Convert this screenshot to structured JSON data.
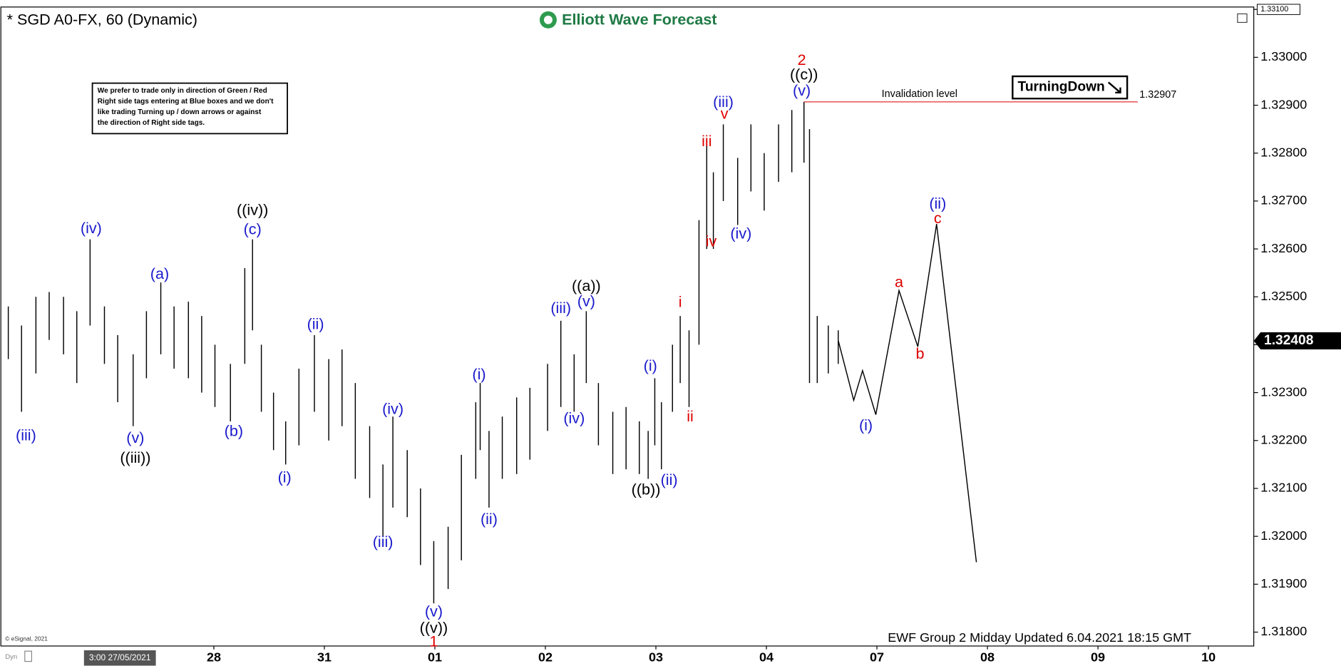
{
  "chart_data": {
    "type": "ohlc",
    "title": "* SGD A0-FX, 60 (Dynamic)",
    "brand": "Elliott Wave Forecast",
    "note": [
      "We prefer to trade only in direction of Green / Red",
      "Right side tags entering at Blue boxes and we don't",
      "like trading Turning up / down arrows or against",
      "the direction of Right side tags."
    ],
    "signal": "TurningDown",
    "footer": "EWF Group 2 Midday Updated 6.04.2021 18:15 GMT",
    "copyright": "© eSignal, 2021",
    "corner": "Dyn",
    "xlim": [
      -0.935,
      10.41
    ],
    "xticks": [
      {
        "value": 0.15,
        "label": "3:00 27/05/2021"
      },
      {
        "value": 1,
        "label": "28"
      },
      {
        "value": 2,
        "label": "31"
      },
      {
        "value": 3,
        "label": "01"
      },
      {
        "value": 4,
        "label": "02"
      },
      {
        "value": 5,
        "label": "03"
      },
      {
        "value": 6,
        "label": "04"
      },
      {
        "value": 7,
        "label": "07"
      },
      {
        "value": 8,
        "label": "08"
      },
      {
        "value": 9,
        "label": "09"
      },
      {
        "value": 10,
        "label": "10"
      }
    ],
    "ylim": [
      1.31771,
      1.33105
    ],
    "yticks": [
      {
        "value": 1.318,
        "label": "1.31800"
      },
      {
        "value": 1.319,
        "label": "1.31900"
      },
      {
        "value": 1.32,
        "label": "1.32000"
      },
      {
        "value": 1.321,
        "label": "1.32100"
      },
      {
        "value": 1.322,
        "label": "1.32200"
      },
      {
        "value": 1.323,
        "label": "1.32300"
      },
      {
        "value": 1.324,
        "label": "1.32400"
      },
      {
        "value": 1.325,
        "label": "1.32500"
      },
      {
        "value": 1.326,
        "label": "1.32600"
      },
      {
        "value": 1.327,
        "label": "1.32700"
      },
      {
        "value": 1.328,
        "label": "1.32800"
      },
      {
        "value": 1.329,
        "label": "1.32900"
      },
      {
        "value": 1.33,
        "label": "1.33000"
      },
      {
        "value": 1.331,
        "label": "1.33100"
      }
    ],
    "last_price": 1.32408,
    "invalidation": {
      "label": "Invalidation level",
      "value": 1.32907,
      "x": [
        6.34,
        9.36
      ],
      "color": "#e03030"
    },
    "bars": {
      "color": "#000000",
      "x": [
        -0.86,
        -0.74,
        -0.61,
        -0.49,
        -0.36,
        -0.24,
        -0.12,
        0.01,
        0.13,
        0.27,
        0.39,
        0.52,
        0.64,
        0.77,
        0.89,
        1.01,
        1.15,
        1.28,
        1.35,
        1.43,
        1.54,
        1.65,
        1.77,
        1.91,
        2.04,
        2.16,
        2.28,
        2.41,
        2.53,
        2.62,
        2.75,
        2.87,
        2.99,
        3.12,
        3.24,
        3.37,
        3.41,
        3.49,
        3.61,
        3.74,
        3.86,
        4.02,
        4.14,
        4.26,
        4.37,
        4.48,
        4.61,
        4.73,
        4.85,
        4.93,
        4.99,
        5.05,
        5.15,
        5.22,
        5.3,
        5.39,
        5.46,
        5.52,
        5.61,
        5.74,
        5.86,
        5.98,
        6.11,
        6.23,
        6.34,
        6.39,
        6.46,
        6.56,
        6.65
      ],
      "high": [
        1.3248,
        1.3244,
        1.325,
        1.3251,
        1.325,
        1.3247,
        1.3262,
        1.3248,
        1.3242,
        1.3238,
        1.3247,
        1.3253,
        1.3248,
        1.3249,
        1.3246,
        1.324,
        1.3236,
        1.3256,
        1.3262,
        1.324,
        1.323,
        1.3224,
        1.3235,
        1.3242,
        1.3237,
        1.3239,
        1.3232,
        1.3223,
        1.3215,
        1.3225,
        1.3218,
        1.321,
        1.3199,
        1.3202,
        1.3217,
        1.3228,
        1.3232,
        1.3222,
        1.3225,
        1.3229,
        1.3231,
        1.3236,
        1.3245,
        1.3238,
        1.3247,
        1.3232,
        1.3226,
        1.3227,
        1.3224,
        1.3222,
        1.3233,
        1.3228,
        1.324,
        1.3246,
        1.3243,
        1.3266,
        1.3283,
        1.3276,
        1.3286,
        1.3279,
        1.3286,
        1.328,
        1.3286,
        1.3289,
        1.32907,
        1.3285,
        1.3246,
        1.3244,
        1.3243
      ],
      "low": [
        1.3237,
        1.3226,
        1.3234,
        1.3241,
        1.3238,
        1.3232,
        1.3244,
        1.3236,
        1.3228,
        1.3223,
        1.3233,
        1.3238,
        1.3235,
        1.3233,
        1.323,
        1.3227,
        1.3224,
        1.3236,
        1.3243,
        1.3226,
        1.3218,
        1.3215,
        1.3219,
        1.3226,
        1.322,
        1.3223,
        1.3212,
        1.3208,
        1.32,
        1.3206,
        1.3204,
        1.3194,
        1.3186,
        1.3189,
        1.3195,
        1.3212,
        1.3218,
        1.3206,
        1.3212,
        1.3213,
        1.3216,
        1.3222,
        1.3227,
        1.3226,
        1.3232,
        1.3219,
        1.3213,
        1.3214,
        1.3213,
        1.3212,
        1.3219,
        1.3214,
        1.3226,
        1.3232,
        1.3227,
        1.324,
        1.326,
        1.326,
        1.327,
        1.3265,
        1.3272,
        1.3268,
        1.3274,
        1.3276,
        1.3278,
        1.3232,
        1.3232,
        1.3234,
        1.3236
      ]
    },
    "projection": {
      "color": "#000000",
      "x": [
        6.65,
        6.79,
        6.87,
        6.99,
        7.2,
        7.37,
        7.54,
        7.9
      ],
      "values": [
        1.32409,
        1.32284,
        1.32346,
        1.32254,
        1.32513,
        1.32396,
        1.32652,
        1.31946
      ]
    },
    "annotations": [
      {
        "text": "(iii)",
        "x": -0.7,
        "price": 1.32209,
        "color": "#1a1acc"
      },
      {
        "text": "(iv)",
        "x": -0.11,
        "price": 1.32641,
        "color": "#1a1acc"
      },
      {
        "text": "(v)",
        "x": 0.29,
        "price": 1.32204,
        "color": "#1a1acc"
      },
      {
        "text": "((iii))",
        "x": 0.29,
        "price": 1.32162,
        "color": "#000000"
      },
      {
        "text": "(a)",
        "x": 0.51,
        "price": 1.32546,
        "color": "#1a1acc"
      },
      {
        "text": "(b)",
        "x": 1.18,
        "price": 1.32218,
        "color": "#1a1acc"
      },
      {
        "text": "(c)",
        "x": 1.35,
        "price": 1.32639,
        "color": "#1a1acc"
      },
      {
        "text": "((iv))",
        "x": 1.35,
        "price": 1.32679,
        "color": "#000000"
      },
      {
        "text": "(i)",
        "x": 1.64,
        "price": 1.32121,
        "color": "#1a1acc"
      },
      {
        "text": "(ii)",
        "x": 1.92,
        "price": 1.32441,
        "color": "#1a1acc"
      },
      {
        "text": "(iii)",
        "x": 2.53,
        "price": 1.31986,
        "color": "#1a1acc"
      },
      {
        "text": "(iv)",
        "x": 2.62,
        "price": 1.32264,
        "color": "#1a1acc"
      },
      {
        "text": "(v)",
        "x": 2.99,
        "price": 1.31841,
        "color": "#1a1acc"
      },
      {
        "text": "((v))",
        "x": 2.99,
        "price": 1.31807,
        "color": "#000000"
      },
      {
        "text": "1",
        "x": 2.99,
        "price": 1.31779,
        "color": "#dd0000"
      },
      {
        "text": "(i)",
        "x": 3.4,
        "price": 1.32336,
        "color": "#1a1acc"
      },
      {
        "text": "(ii)",
        "x": 3.49,
        "price": 1.32034,
        "color": "#1a1acc"
      },
      {
        "text": "(iii)",
        "x": 4.14,
        "price": 1.32475,
        "color": "#1a1acc"
      },
      {
        "text": "(iv)",
        "x": 4.26,
        "price": 1.32245,
        "color": "#1a1acc"
      },
      {
        "text": "(v)",
        "x": 4.37,
        "price": 1.32489,
        "color": "#1a1acc"
      },
      {
        "text": "((a))",
        "x": 4.37,
        "price": 1.32521,
        "color": "#000000"
      },
      {
        "text": "((b))",
        "x": 4.91,
        "price": 1.32096,
        "color": "#000000"
      },
      {
        "text": "(i)",
        "x": 4.95,
        "price": 1.32354,
        "color": "#1a1acc"
      },
      {
        "text": "(ii)",
        "x": 5.12,
        "price": 1.32116,
        "color": "#1a1acc"
      },
      {
        "text": "i",
        "x": 5.22,
        "price": 1.32487,
        "color": "#dd0000"
      },
      {
        "text": "ii",
        "x": 5.31,
        "price": 1.32248,
        "color": "#dd0000"
      },
      {
        "text": "iii",
        "x": 5.46,
        "price": 1.32823,
        "color": "#dd0000"
      },
      {
        "text": "iv",
        "x": 5.5,
        "price": 1.32614,
        "color": "#dd0000"
      },
      {
        "text": "v",
        "x": 5.62,
        "price": 1.3288,
        "color": "#dd0000"
      },
      {
        "text": "(iii)",
        "x": 5.61,
        "price": 1.32905,
        "color": "#1a1acc"
      },
      {
        "text": "(iv)",
        "x": 5.77,
        "price": 1.3263,
        "color": "#1a1acc"
      },
      {
        "text": "(v)",
        "x": 6.32,
        "price": 1.32929,
        "color": "#1a1acc"
      },
      {
        "text": "((c))",
        "x": 6.34,
        "price": 1.32962,
        "color": "#000000"
      },
      {
        "text": "2",
        "x": 6.32,
        "price": 1.32993,
        "color": "#dd0000"
      },
      {
        "text": "(i)",
        "x": 6.9,
        "price": 1.3223,
        "color": "#1a1acc"
      },
      {
        "text": "a",
        "x": 7.2,
        "price": 1.32529,
        "color": "#dd0000"
      },
      {
        "text": "b",
        "x": 7.39,
        "price": 1.32379,
        "color": "#dd0000"
      },
      {
        "text": "(ii)",
        "x": 7.55,
        "price": 1.32693,
        "color": "#1a1acc"
      },
      {
        "text": "c",
        "x": 7.55,
        "price": 1.32662,
        "color": "#dd0000"
      }
    ]
  }
}
